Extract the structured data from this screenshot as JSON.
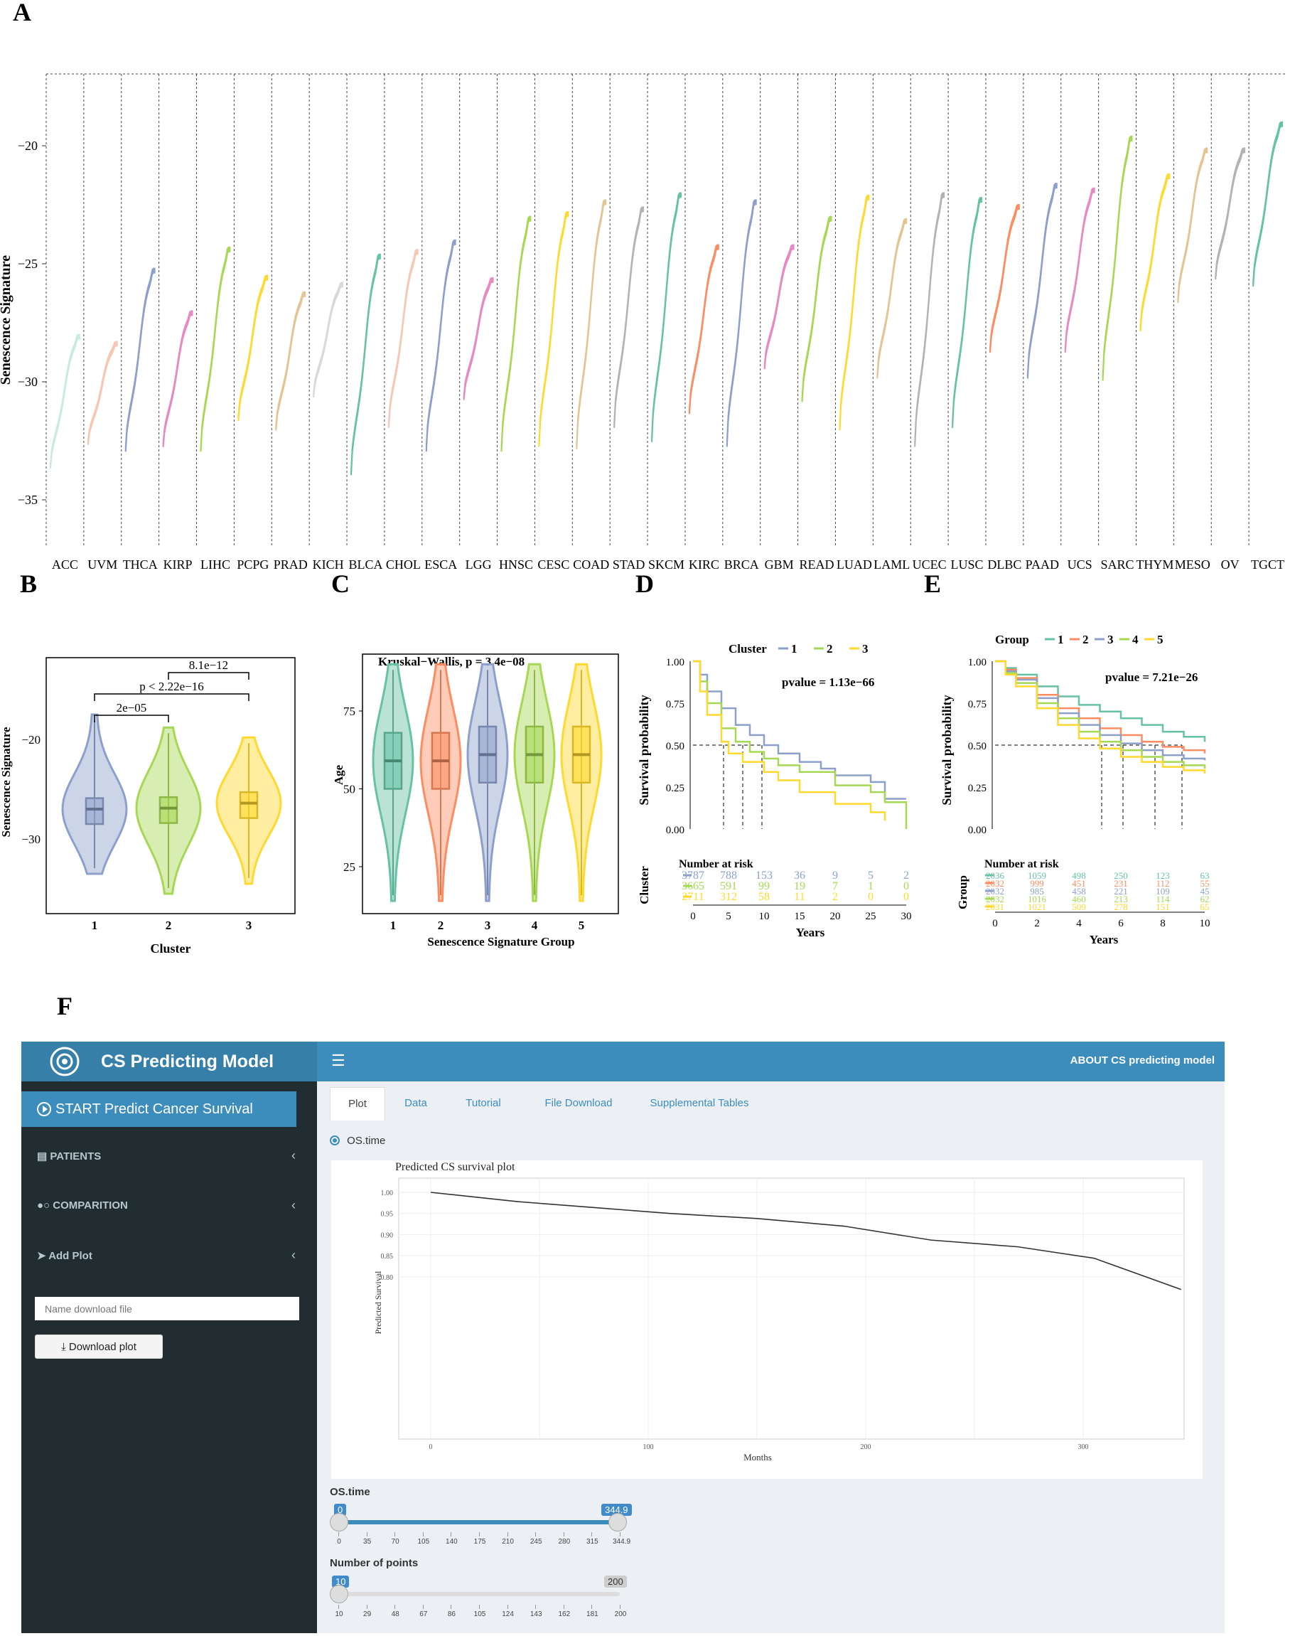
{
  "panel_labels": {
    "A": "A",
    "B": "B",
    "C": "C",
    "D": "D",
    "E": "E",
    "F": "F"
  },
  "chart_data": [
    {
      "panel": "A",
      "type": "area",
      "ylabel": "Senescence Signature",
      "yticks": [
        "−20",
        "−25",
        "−30",
        "−35"
      ],
      "ylim": [
        -37.5,
        -17
      ],
      "cancers": [
        {
          "name": "ACC",
          "color": "#c8ebe0",
          "range": [
            -33.5,
            -28
          ]
        },
        {
          "name": "UVM",
          "color": "#f7c7b3",
          "range": [
            -32.5,
            -28.3
          ]
        },
        {
          "name": "THCA",
          "color": "#8da0cb",
          "range": [
            -32.8,
            -25.2
          ]
        },
        {
          "name": "KIRP",
          "color": "#e78ac3",
          "range": [
            -32.6,
            -27
          ]
        },
        {
          "name": "LIHC",
          "color": "#a6d854",
          "range": [
            -32.8,
            -24.3
          ]
        },
        {
          "name": "PCPG",
          "color": "#ffd92f",
          "range": [
            -31.5,
            -25.5
          ]
        },
        {
          "name": "PRAD",
          "color": "#e5c494",
          "range": [
            -31.9,
            -26.2
          ]
        },
        {
          "name": "KICH",
          "color": "#d9d9d9",
          "range": [
            -30.5,
            -25.8
          ]
        },
        {
          "name": "BLCA",
          "color": "#66c2a5",
          "range": [
            -33.8,
            -24.6
          ]
        },
        {
          "name": "CHOL",
          "color": "#f7c7b3",
          "range": [
            -31.8,
            -24.4
          ]
        },
        {
          "name": "ESCA",
          "color": "#8da0cb",
          "range": [
            -32.8,
            -24
          ]
        },
        {
          "name": "LGG",
          "color": "#e78ac3",
          "range": [
            -30.6,
            -25.6
          ]
        },
        {
          "name": "HNSC",
          "color": "#a6d854",
          "range": [
            -32.8,
            -23
          ]
        },
        {
          "name": "CESC",
          "color": "#ffd92f",
          "range": [
            -32.6,
            -22.8
          ]
        },
        {
          "name": "COAD",
          "color": "#e5c494",
          "range": [
            -32.7,
            -22.3
          ]
        },
        {
          "name": "STAD",
          "color": "#b3b3b3",
          "range": [
            -31.8,
            -22.6
          ]
        },
        {
          "name": "SKCM",
          "color": "#66c2a5",
          "range": [
            -32.4,
            -22
          ]
        },
        {
          "name": "KIRC",
          "color": "#fc8d62",
          "range": [
            -31.2,
            -24.2
          ]
        },
        {
          "name": "BRCA",
          "color": "#8da0cb",
          "range": [
            -32.6,
            -22.3
          ]
        },
        {
          "name": "GBM",
          "color": "#e78ac3",
          "range": [
            -29.3,
            -24.2
          ]
        },
        {
          "name": "READ",
          "color": "#a6d854",
          "range": [
            -30.7,
            -23
          ]
        },
        {
          "name": "LUAD",
          "color": "#ffd92f",
          "range": [
            -31.9,
            -22.1
          ]
        },
        {
          "name": "LAML",
          "color": "#e5c494",
          "range": [
            -29.7,
            -23.1
          ]
        },
        {
          "name": "UCEC",
          "color": "#b3b3b3",
          "range": [
            -32.6,
            -22
          ]
        },
        {
          "name": "LUSC",
          "color": "#66c2a5",
          "range": [
            -31.8,
            -22.2
          ]
        },
        {
          "name": "DLBC",
          "color": "#fc8d62",
          "range": [
            -28.6,
            -22.5
          ]
        },
        {
          "name": "PAAD",
          "color": "#8da0cb",
          "range": [
            -29.7,
            -21.6
          ]
        },
        {
          "name": "UCS",
          "color": "#e78ac3",
          "range": [
            -28.6,
            -21.8
          ]
        },
        {
          "name": "SARC",
          "color": "#a6d854",
          "range": [
            -29.8,
            -19.6
          ]
        },
        {
          "name": "THYM",
          "color": "#ffd92f",
          "range": [
            -27.7,
            -21.2
          ]
        },
        {
          "name": "MESO",
          "color": "#e5c494",
          "range": [
            -26.5,
            -20.1
          ]
        },
        {
          "name": "OV",
          "color": "#b3b3b3",
          "range": [
            -25.5,
            -20.1
          ]
        },
        {
          "name": "TGCT",
          "color": "#66c2a5",
          "range": [
            -25.8,
            -19
          ]
        }
      ]
    },
    {
      "panel": "B",
      "type": "violin",
      "xlabel": "Cluster",
      "ylabel": "Senescence Signature",
      "categories": [
        "1",
        "2",
        "3"
      ],
      "colors": [
        "#8da0cb",
        "#a6d854",
        "#ffd92f"
      ],
      "yticks": [
        "−20",
        "−30"
      ],
      "medians": [
        -27.0,
        -26.9,
        -26.4
      ],
      "annotations": [
        "8.1e−12",
        "p < 2.22e−16",
        "2e−05"
      ]
    },
    {
      "panel": "C",
      "type": "violin",
      "xlabel": "Senescence Signature Group",
      "ylabel": "Age",
      "title": "Kruskal−Wallis, p = 3.4e−08",
      "categories": [
        "1",
        "2",
        "3",
        "4",
        "5"
      ],
      "colors": [
        "#66c2a5",
        "#fc8d62",
        "#8da0cb",
        "#a6d854",
        "#ffd92f"
      ],
      "yticks": [
        "75",
        "50",
        "25"
      ],
      "medians": [
        59,
        59,
        61,
        61,
        61
      ]
    },
    {
      "panel": "D",
      "type": "line",
      "legend_title": "Cluster",
      "legend": [
        "1",
        "2",
        "3"
      ],
      "colors": [
        "#8da0cb",
        "#a6d854",
        "#ffd92f"
      ],
      "pvalue": "pvalue = 1.13e−66",
      "ylabel": "Survival probability",
      "xlabel": "Years",
      "yticks": [
        "1.00",
        "0.75",
        "0.50",
        "0.25",
        "0.00"
      ],
      "xticks": [
        "0",
        "5",
        "10",
        "15",
        "20",
        "25",
        "30"
      ],
      "risk_title": "Number at risk",
      "risk_ylabel": "Cluster",
      "risk_table": [
        [
          "3787",
          "788",
          "153",
          "36",
          "9",
          "5",
          "2"
        ],
        [
          "3665",
          "591",
          "99",
          "19",
          "7",
          "1",
          "0"
        ],
        [
          "2711",
          "312",
          "58",
          "11",
          "2",
          "0",
          "0"
        ]
      ]
    },
    {
      "panel": "E",
      "type": "line",
      "legend_title": "Group",
      "legend": [
        "1",
        "2",
        "3",
        "4",
        "5"
      ],
      "colors": [
        "#66c2a5",
        "#fc8d62",
        "#8da0cb",
        "#a6d854",
        "#ffd92f"
      ],
      "pvalue": "pvalue = 7.21e−26",
      "ylabel": "Survival probability",
      "xlabel": "Years",
      "yticks": [
        "1.00",
        "0.75",
        "0.50",
        "0.25",
        "0.00"
      ],
      "xticks": [
        "0",
        "2",
        "4",
        "6",
        "8",
        "10"
      ],
      "risk_title": "Number at risk",
      "risk_ylabel": "Group",
      "risk_table": [
        [
          "2036",
          "1059",
          "498",
          "250",
          "123",
          "63"
        ],
        [
          "2032",
          "999",
          "451",
          "231",
          "112",
          "55"
        ],
        [
          "2032",
          "985",
          "458",
          "221",
          "109",
          "45"
        ],
        [
          "2032",
          "1016",
          "460",
          "213",
          "114",
          "62"
        ],
        [
          "2031",
          "1021",
          "509",
          "278",
          "151",
          "65"
        ]
      ]
    },
    {
      "panel": "F",
      "type": "line",
      "title": "Predicted CS survival plot",
      "xlabel": "Months",
      "ylabel": "Predicted Survival",
      "xticks": [
        "0",
        "100",
        "200",
        "300"
      ],
      "yticks": [
        "1.00",
        "0.95",
        "0.90",
        "0.85",
        "0.80"
      ],
      "x": [
        0,
        40,
        80,
        110,
        150,
        190,
        230,
        270,
        305,
        345
      ],
      "y": [
        1.0,
        0.978,
        0.962,
        0.95,
        0.938,
        0.92,
        0.887,
        0.871,
        0.844,
        0.77
      ]
    }
  ],
  "app": {
    "title": "CS Predicting Model",
    "about": "ABOUT CS predicting model",
    "start_button": "START Predict Cancer Survival",
    "sidebar": [
      {
        "label": "PATIENTS",
        "icon": "id-card-icon"
      },
      {
        "label": "COMPARITION",
        "icon": "pills-icon"
      },
      {
        "label": "Add Plot",
        "icon": "location-arrow-icon"
      }
    ],
    "download_placeholder": "Name download file",
    "download_button": "Download plot",
    "tabs": [
      "Plot",
      "Data",
      "Tutorial",
      "File Download",
      "Supplemental Tables"
    ],
    "radio_label": "OS.time",
    "slider1": {
      "label": "OS.time",
      "min": "0",
      "max": "344.9",
      "ticks": [
        "0",
        "35",
        "70",
        "105",
        "140",
        "175",
        "210",
        "245",
        "280",
        "315",
        "344.9"
      ]
    },
    "slider2": {
      "label": "Number of points",
      "value": "10",
      "max": "200",
      "ticks": [
        "10",
        "29",
        "48",
        "67",
        "86",
        "105",
        "124",
        "143",
        "162",
        "181",
        "200"
      ]
    }
  }
}
